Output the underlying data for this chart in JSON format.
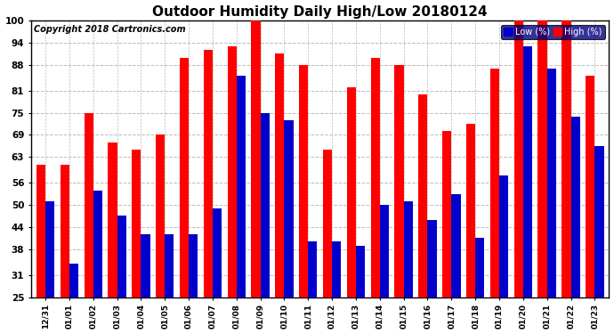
{
  "title": "Outdoor Humidity Daily High/Low 20180124",
  "copyright": "Copyright 2018 Cartronics.com",
  "categories": [
    "12/31",
    "01/01",
    "01/02",
    "01/03",
    "01/04",
    "01/05",
    "01/06",
    "01/07",
    "01/08",
    "01/09",
    "01/10",
    "01/11",
    "01/12",
    "01/13",
    "01/14",
    "01/15",
    "01/16",
    "01/17",
    "01/18",
    "01/19",
    "01/20",
    "01/21",
    "01/22",
    "01/23"
  ],
  "high_values": [
    61,
    61,
    75,
    67,
    65,
    69,
    90,
    92,
    93,
    100,
    91,
    88,
    65,
    82,
    90,
    88,
    80,
    70,
    72,
    87,
    100,
    100,
    100,
    85
  ],
  "low_values": [
    51,
    34,
    54,
    47,
    42,
    42,
    42,
    49,
    85,
    75,
    73,
    40,
    40,
    39,
    50,
    51,
    46,
    53,
    41,
    58,
    93,
    87,
    74,
    66
  ],
  "high_color": "#ff0000",
  "low_color": "#0000cc",
  "ylim": [
    25,
    100
  ],
  "ybase": 25,
  "yticks": [
    25,
    31,
    38,
    44,
    50,
    56,
    63,
    69,
    75,
    81,
    88,
    94,
    100
  ],
  "background_color": "#ffffff",
  "plot_bg_color": "#ffffff",
  "grid_color": "#bbbbbb",
  "title_fontsize": 11,
  "copyright_fontsize": 7,
  "legend_low_label": "Low (%)",
  "legend_high_label": "High (%)"
}
